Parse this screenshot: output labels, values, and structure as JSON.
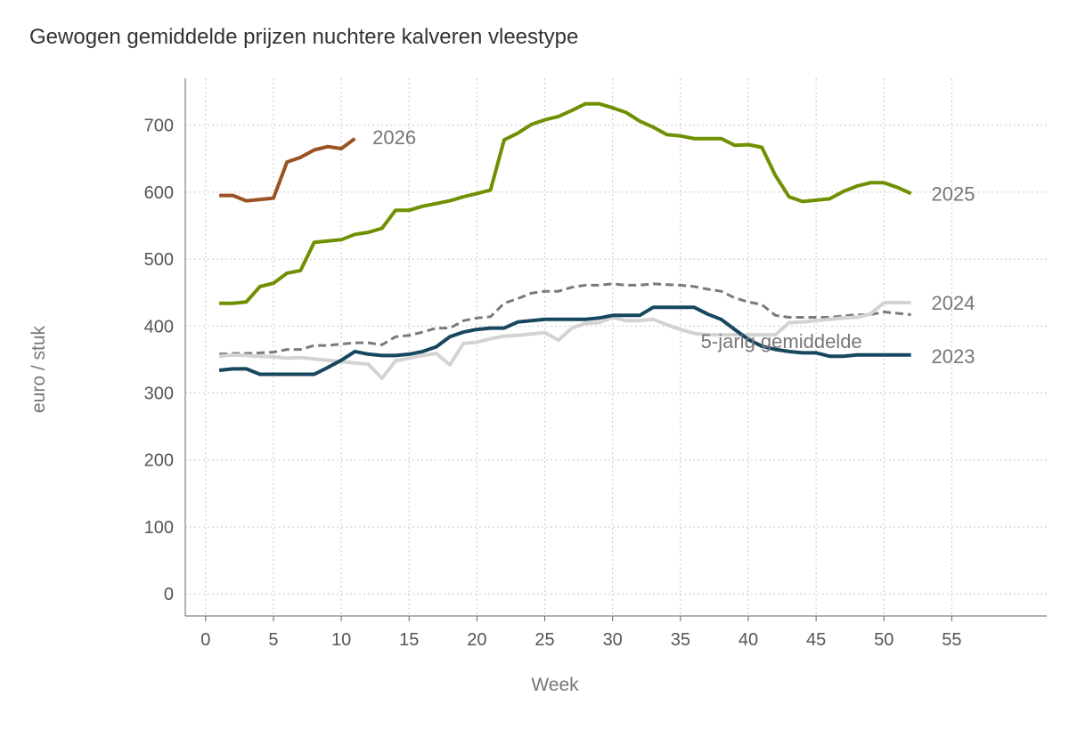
{
  "chart_data": {
    "type": "line",
    "title": "Gewogen gemiddelde prijzen nuchtere kalveren vleestype",
    "xlabel": "Week",
    "ylabel": "euro / stuk",
    "xlim": [
      -1.5,
      62
    ],
    "ylim": [
      -33,
      770
    ],
    "xticks": [
      0,
      5,
      10,
      15,
      20,
      25,
      30,
      35,
      40,
      45,
      50,
      55
    ],
    "yticks": [
      0,
      100,
      200,
      300,
      400,
      500,
      600,
      700
    ],
    "grid": true,
    "series": [
      {
        "name": "5-jarig gemiddelde",
        "color": "#7a7a7a",
        "dashed": true,
        "label_week": 36.5,
        "label_value": 378,
        "values": [
          358,
          359,
          359,
          360,
          361,
          365,
          365,
          371,
          371,
          373,
          375,
          375,
          372,
          384,
          386,
          391,
          397,
          397,
          408,
          412,
          414,
          434,
          441,
          449,
          452,
          452,
          458,
          461,
          461,
          463,
          461,
          461,
          463,
          462,
          461,
          459,
          455,
          452,
          442,
          436,
          432,
          416,
          413,
          413,
          413,
          413,
          415,
          417,
          417,
          421,
          419,
          417
        ]
      },
      {
        "name": "2024",
        "color": "#d3d3d3",
        "label_week": 53.5,
        "label_value": 435,
        "values": [
          355,
          357,
          356,
          355,
          354,
          352,
          353,
          351,
          349,
          347,
          345,
          343,
          322,
          348,
          352,
          356,
          359,
          342,
          374,
          376,
          381,
          385,
          386,
          388,
          390,
          379,
          397,
          404,
          405,
          413,
          408,
          408,
          410,
          402,
          395,
          389,
          387,
          387,
          387,
          387,
          387,
          387,
          405,
          406,
          408,
          410,
          412,
          413,
          418,
          435,
          435,
          435
        ]
      },
      {
        "name": "2023",
        "color": "#17475e",
        "label_week": 53.5,
        "label_value": 355,
        "values": [
          334,
          336,
          336,
          328,
          328,
          328,
          328,
          328,
          338,
          349,
          362,
          358,
          356,
          356,
          358,
          362,
          369,
          384,
          391,
          395,
          397,
          397,
          406,
          408,
          410,
          410,
          410,
          410,
          412,
          416,
          416,
          416,
          428,
          428,
          428,
          428,
          418,
          410,
          395,
          380,
          370,
          365,
          362,
          360,
          360,
          355,
          355,
          357,
          357,
          357,
          357,
          357
        ]
      },
      {
        "name": "2025",
        "color": "#6f9000",
        "label_week": 53.5,
        "label_value": 598,
        "values": [
          434,
          434,
          436,
          459,
          464,
          479,
          483,
          525,
          527,
          529,
          537,
          540,
          546,
          573,
          573,
          579,
          583,
          587,
          593,
          598,
          603,
          678,
          688,
          701,
          708,
          713,
          722,
          732,
          732,
          726,
          719,
          706,
          697,
          686,
          684,
          680,
          680,
          680,
          670,
          671,
          667,
          625,
          593,
          586,
          588,
          590,
          601,
          609,
          614,
          614,
          607,
          598
        ]
      },
      {
        "name": "2026",
        "color": "#9a5223",
        "label_week": 12.3,
        "label_value": 682,
        "values": [
          595,
          595,
          587,
          589,
          591,
          645,
          652,
          663,
          668,
          665,
          680
        ]
      }
    ]
  }
}
